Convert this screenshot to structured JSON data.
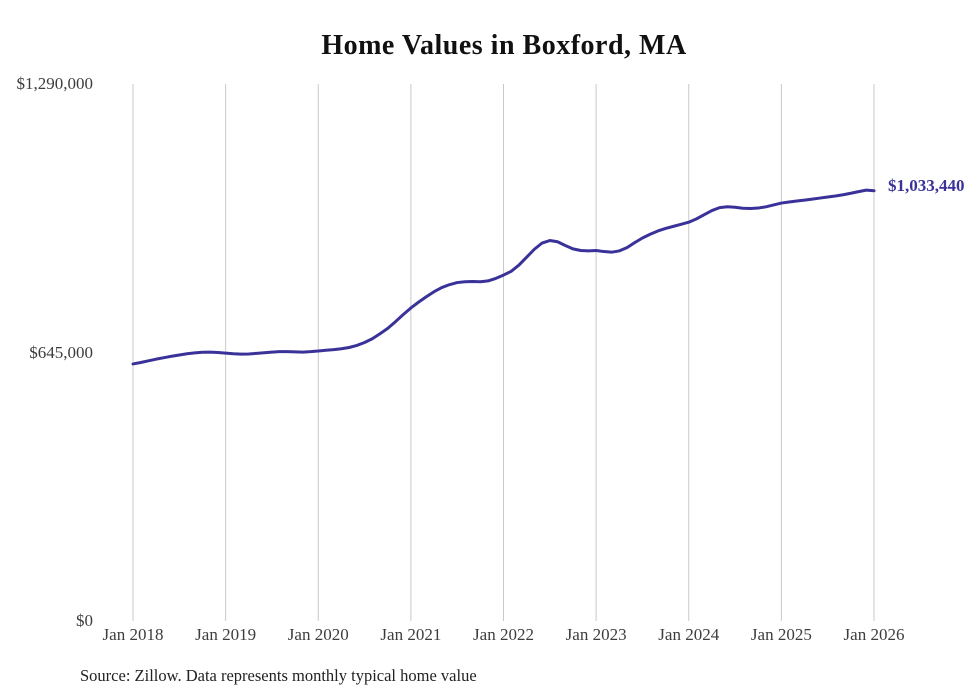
{
  "chart_data": {
    "type": "line",
    "title": "Home Values in Boxford, MA",
    "source_note": "Source: Zillow. Data represents monthly typical home value",
    "end_label": "$1,033,440",
    "end_value": 1033440,
    "frequency": "monthly",
    "x_start": "2018-01",
    "x_end": "2026-01",
    "x_ticks": [
      "Jan 2018",
      "Jan 2019",
      "Jan 2020",
      "Jan 2021",
      "Jan 2022",
      "Jan 2023",
      "Jan 2024",
      "Jan 2025",
      "Jan 2026"
    ],
    "y_ticks": [
      {
        "label": "$1,290,000",
        "value": 1290000
      },
      {
        "label": "$645,000",
        "value": 645000
      },
      {
        "label": "$0",
        "value": 0
      }
    ],
    "ylim": [
      0,
      1290000
    ],
    "grid": "vertical-only",
    "legend": "none",
    "line_color": "#3a3299",
    "grid_color": "#c9c9c9",
    "series": [
      {
        "name": "Typical home value",
        "values": [
          617500,
          621000,
          625000,
          629000,
          632500,
          636000,
          639000,
          642000,
          644000,
          645500,
          646000,
          645000,
          643500,
          642000,
          641000,
          641500,
          643000,
          644500,
          646000,
          647000,
          647000,
          646500,
          646000,
          647000,
          648500,
          650500,
          652000,
          654000,
          657000,
          662000,
          669000,
          678000,
          690000,
          703000,
          719000,
          736000,
          752000,
          766000,
          779000,
          791000,
          801000,
          808000,
          813000,
          815000,
          815500,
          815000,
          817000,
          823000,
          831000,
          840000,
          855000,
          874000,
          893000,
          908000,
          914000,
          911000,
          902000,
          894000,
          890000,
          889000,
          890000,
          887500,
          886000,
          889000,
          897000,
          909000,
          920000,
          929000,
          937000,
          943000,
          948000,
          953000,
          958000,
          966000,
          976000,
          986000,
          993000,
          995000,
          994000,
          991500,
          991000,
          992000,
          995000,
          999500,
          1004000,
          1006500,
          1009000,
          1011000,
          1013500,
          1016000,
          1018500,
          1021000,
          1024000,
          1027500,
          1031500,
          1035000,
          1033440
        ]
      }
    ]
  }
}
